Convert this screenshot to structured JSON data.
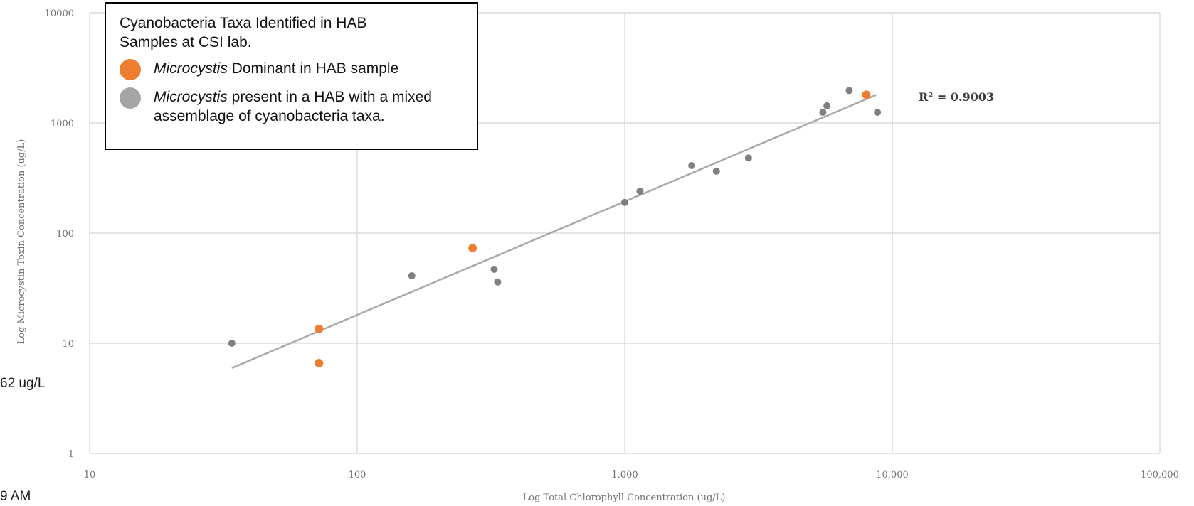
{
  "fragments": {
    "left_value": "62 ug/L",
    "left_time": "9 AM"
  },
  "legend": {
    "title": "Cyanobacteria Taxa Identified in HAB\nSamples at CSI lab.",
    "entries": [
      {
        "italic": "Microcystis",
        "text": " Dominant  in HAB sample",
        "color": "#ED7D31"
      },
      {
        "italic": "Microcystis",
        "text": " present in a HAB with a mixed\nassemblage of cyanobacteria taxa.",
        "color": "#A5A5A5"
      }
    ]
  },
  "chart_data": {
    "type": "scatter",
    "xlabel": "Log Total Chlorophyll Concentration (ug/L)",
    "ylabel": "Log Microcystin Toxin Concentration (ug/L)",
    "x_scale": "log",
    "y_scale": "log",
    "xlim": [
      10,
      100000
    ],
    "ylim": [
      1,
      10000
    ],
    "x_ticks": [
      10,
      100,
      1000,
      10000,
      100000
    ],
    "x_tick_labels": [
      "10",
      "100",
      "1,000",
      "10,000",
      "100,000"
    ],
    "y_ticks": [
      1,
      10,
      100,
      1000,
      10000
    ],
    "y_tick_labels": [
      "1",
      "10",
      "100",
      "1000",
      "10000"
    ],
    "grid": true,
    "legend_position": "top-left",
    "annotation": "R² = 0.9003",
    "trendline": {
      "type": "power",
      "color": "#A9A9A9",
      "x_range": [
        34,
        8700
      ]
    },
    "series": [
      {
        "name": "Microcystis Dominant  in HAB sample",
        "color": "#ED7D31",
        "points": [
          [
            72,
            13.5
          ],
          [
            72,
            6.6
          ],
          [
            270,
            73
          ],
          [
            8000,
            1800
          ]
        ]
      },
      {
        "name": "Microcystis present in a HAB with a mixed assemblage of cyanobacteria taxa.",
        "color": "#808080",
        "points": [
          [
            34,
            10
          ],
          [
            160,
            41
          ],
          [
            325,
            47
          ],
          [
            335,
            36
          ],
          [
            1000,
            190
          ],
          [
            1140,
            240
          ],
          [
            1780,
            410
          ],
          [
            2200,
            365
          ],
          [
            2900,
            480
          ],
          [
            5500,
            1250
          ],
          [
            5700,
            1430
          ],
          [
            6900,
            1970
          ],
          [
            8800,
            1250
          ]
        ]
      }
    ]
  }
}
